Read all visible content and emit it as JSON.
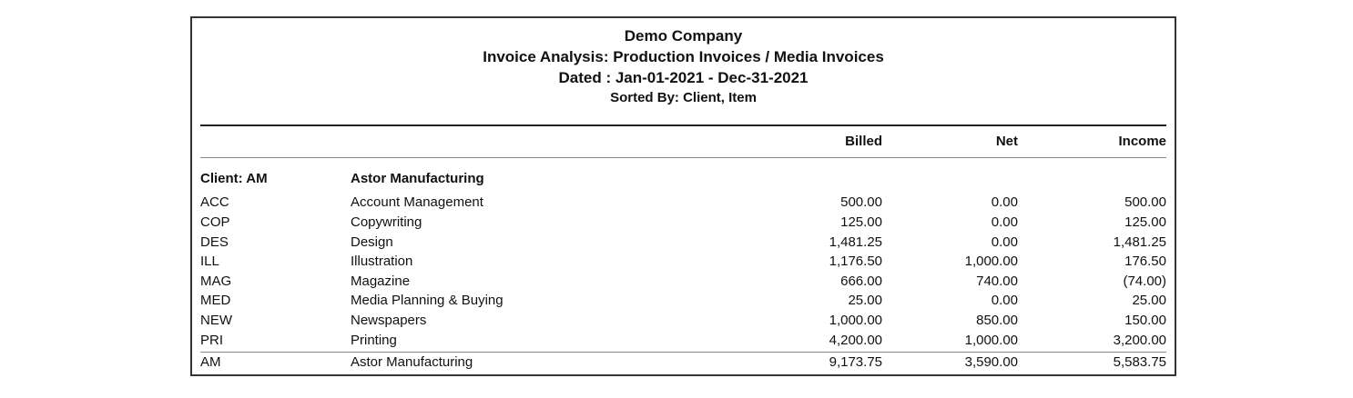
{
  "report": {
    "company": "Demo Company",
    "title": "Invoice Analysis: Production Invoices / Media Invoices",
    "dated": "Dated : Jan-01-2021 - Dec-31-2021",
    "sorted_by": "Sorted By: Client, Item"
  },
  "columns": {
    "billed": "Billed",
    "net": "Net",
    "income": "Income"
  },
  "client_group": {
    "code_label": "Client: AM",
    "name": "Astor Manufacturing"
  },
  "rows": [
    {
      "code": "ACC",
      "desc": "Account Management",
      "billed": "500.00",
      "net": "0.00",
      "income": "500.00"
    },
    {
      "code": "COP",
      "desc": "Copywriting",
      "billed": "125.00",
      "net": "0.00",
      "income": "125.00"
    },
    {
      "code": "DES",
      "desc": "Design",
      "billed": "1,481.25",
      "net": "0.00",
      "income": "1,481.25"
    },
    {
      "code": "ILL",
      "desc": "Illustration",
      "billed": "1,176.50",
      "net": "1,000.00",
      "income": "176.50"
    },
    {
      "code": "MAG",
      "desc": "Magazine",
      "billed": "666.00",
      "net": "740.00",
      "income": "(74.00)"
    },
    {
      "code": "MED",
      "desc": "Media Planning & Buying",
      "billed": "25.00",
      "net": "0.00",
      "income": "25.00"
    },
    {
      "code": "NEW",
      "desc": "Newspapers",
      "billed": "1,000.00",
      "net": "850.00",
      "income": "150.00"
    },
    {
      "code": "PRI",
      "desc": "Printing",
      "billed": "4,200.00",
      "net": "1,000.00",
      "income": "3,200.00"
    }
  ],
  "total": {
    "code": "AM",
    "desc": "Astor Manufacturing",
    "billed": "9,173.75",
    "net": "3,590.00",
    "income": "5,583.75"
  }
}
